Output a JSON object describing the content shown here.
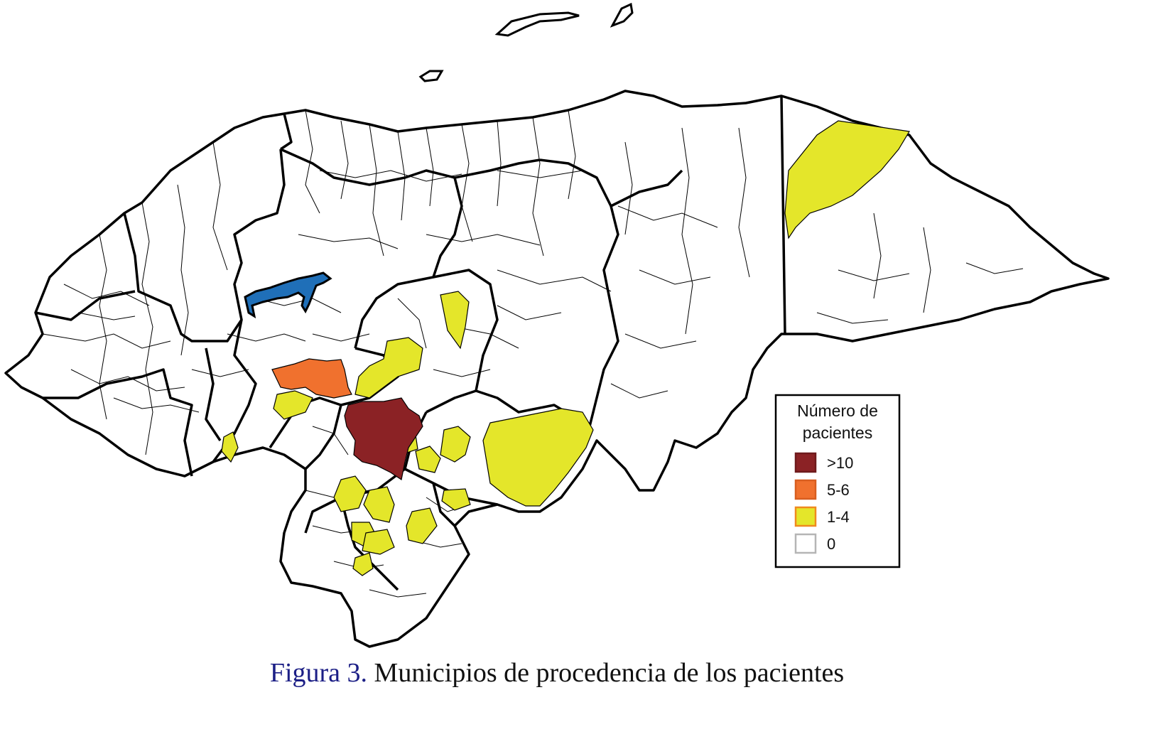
{
  "legend": {
    "title_line1": "Número de",
    "title_line2": "pacientes",
    "items": [
      {
        "label": ">10",
        "color": "#8b2225",
        "stroke": "#6e1a1c"
      },
      {
        "label": "5-6",
        "color": "#f0712e",
        "stroke": "#d85e1f"
      },
      {
        "label": "1-4",
        "color": "#e4e62a",
        "stroke": "#f08a1e"
      },
      {
        "label": "0",
        "color": "#ffffff",
        "stroke": "#b5b5b5"
      }
    ]
  },
  "caption": {
    "lead": "Figura 3.",
    "text": " Municipios de procedencia de los pacientes"
  },
  "colors": {
    "lake": "#1f6fb8",
    "outline": "#000000"
  }
}
